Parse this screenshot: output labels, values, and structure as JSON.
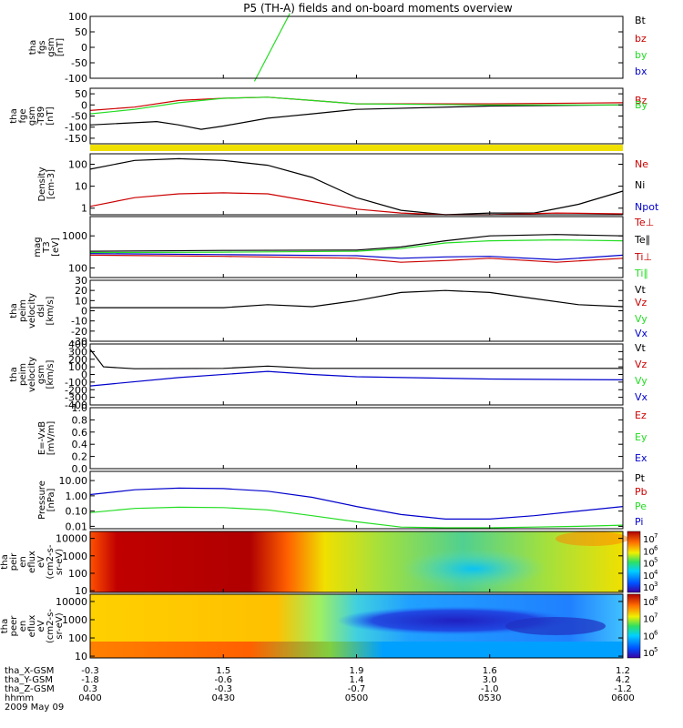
{
  "title": "P5 (TH-A) fields and on-board moments overview",
  "colors": {
    "black": "#000000",
    "red": "#cc0000",
    "green": "#22dd22",
    "blue": "#0000cc",
    "yellow": "#f0e000"
  },
  "time_axis": {
    "ticks": [
      "0400",
      "0430",
      "0500",
      "0530",
      "0600"
    ],
    "rows": [
      {
        "label": "tha_X-GSM",
        "values": [
          "-0.3",
          "1.5",
          "1.9",
          "1.6",
          "1.2"
        ]
      },
      {
        "label": "tha_Y-GSM",
        "values": [
          "-1.8",
          "-0.6",
          "1.4",
          "3.0",
          "4.2"
        ]
      },
      {
        "label": "tha_Z-GSM",
        "values": [
          "0.3",
          "-0.3",
          "-0.7",
          "-1.0",
          "-1.2"
        ]
      },
      {
        "label": "hhmm",
        "values": [
          "0400",
          "0430",
          "0500",
          "0530",
          "0600"
        ]
      }
    ],
    "date": "2009 May 09"
  },
  "panels": [
    {
      "key": "fgs",
      "ylabel": [
        "tha",
        "fgs",
        "gsm",
        "[nT]"
      ],
      "ylim": [
        -100,
        100
      ],
      "yticks": [
        "100",
        "50",
        "0",
        "-50",
        "-100"
      ],
      "ytick_values": [
        100,
        50,
        0,
        -50,
        -100
      ],
      "legend": [
        {
          "text": "Bt",
          "color": "#000000"
        },
        {
          "text": "bz",
          "color": "#cc0000"
        },
        {
          "text": "by",
          "color": "#22dd22"
        },
        {
          "text": "bx",
          "color": "#0000cc"
        }
      ]
    },
    {
      "key": "fge",
      "ylabel": [
        "tha",
        "fge",
        "gsm",
        "-T89",
        "[nT]"
      ],
      "ylim": [
        -175,
        75
      ],
      "yticks": [
        "50",
        "0",
        "-50",
        "-100",
        "-150"
      ],
      "ytick_values": [
        50,
        0,
        -50,
        -100,
        -150
      ],
      "legend": [
        {
          "text": "Bz",
          "color": "#cc0000"
        },
        {
          "text": "By",
          "color": "#22dd22"
        }
      ]
    },
    {
      "key": "density",
      "ylabel": [
        "Density",
        "[cm-3]"
      ],
      "log": true,
      "ylim": [
        0.5,
        300
      ],
      "yticks": [
        "100",
        "10",
        "1"
      ],
      "ytick_values": [
        100,
        10,
        1
      ],
      "legend": [
        {
          "text": "Ne",
          "color": "#cc0000"
        },
        {
          "text": "Ni",
          "color": "#000000"
        },
        {
          "text": "Npot",
          "color": "#0000cc"
        }
      ]
    },
    {
      "key": "temp",
      "ylabel": [
        "mag",
        "T3",
        "[eV]"
      ],
      "log": true,
      "ylim": [
        50,
        4000
      ],
      "yticks": [
        "1000",
        "100"
      ],
      "ytick_values": [
        1000,
        100
      ],
      "legend": [
        {
          "text": "Te⊥",
          "color": "#cc0000"
        },
        {
          "text": "Te∥",
          "color": "#000000"
        },
        {
          "text": "Ti⊥",
          "color": "#cc0000"
        },
        {
          "text": "Ti∥",
          "color": "#22dd22"
        }
      ]
    },
    {
      "key": "vdsl",
      "ylabel": [
        "tha",
        "peim",
        "velocity",
        "dsl",
        "[km/s]"
      ],
      "ylim": [
        -30,
        30
      ],
      "yticks": [
        "30",
        "20",
        "10",
        "0",
        "-10",
        "-20",
        "-30"
      ],
      "ytick_values": [
        30,
        20,
        10,
        0,
        -10,
        -20,
        -30
      ],
      "legend": [
        {
          "text": "Vt",
          "color": "#000000"
        },
        {
          "text": "Vz",
          "color": "#cc0000"
        },
        {
          "text": "Vy",
          "color": "#22dd22"
        },
        {
          "text": "Vx",
          "color": "#0000cc"
        }
      ]
    },
    {
      "key": "vgsm",
      "ylabel": [
        "tha",
        "peim",
        "velocity",
        "gsm",
        "[km/s]"
      ],
      "ylim": [
        -400,
        400
      ],
      "yticks": [
        "400",
        "300",
        "200",
        "100",
        "0",
        "-100",
        "-200",
        "-300",
        "-400"
      ],
      "ytick_values": [
        400,
        300,
        200,
        100,
        0,
        -100,
        -200,
        -300,
        -400
      ],
      "legend": [
        {
          "text": "Vt",
          "color": "#000000"
        },
        {
          "text": "Vz",
          "color": "#cc0000"
        },
        {
          "text": "Vy",
          "color": "#22dd22"
        },
        {
          "text": "Vx",
          "color": "#0000cc"
        }
      ]
    },
    {
      "key": "efield",
      "ylabel": [
        "E=-VxB",
        "[mV/m]"
      ],
      "ylim": [
        0,
        1
      ],
      "yticks": [
        "1.0",
        "0.8",
        "0.6",
        "0.4",
        "0.2",
        "0.0"
      ],
      "ytick_values": [
        1.0,
        0.8,
        0.6,
        0.4,
        0.2,
        0.0
      ],
      "legend": [
        {
          "text": "Ez",
          "color": "#cc0000"
        },
        {
          "text": "Ey",
          "color": "#22dd22"
        },
        {
          "text": "Ex",
          "color": "#0000cc"
        }
      ]
    },
    {
      "key": "pressure",
      "ylabel": [
        "Pressure",
        "[nPa]"
      ],
      "log": true,
      "ylim": [
        0.007,
        40
      ],
      "yticks": [
        "10.00",
        "1.00",
        "0.10",
        "0.01"
      ],
      "ytick_values": [
        10,
        1,
        0.1,
        0.01
      ],
      "legend": [
        {
          "text": "Pt",
          "color": "#000000"
        },
        {
          "text": "Pb",
          "color": "#cc0000"
        },
        {
          "text": "Pe",
          "color": "#22dd22"
        },
        {
          "text": "Pi",
          "color": "#0000cc"
        }
      ]
    },
    {
      "key": "peir",
      "ylabel": [
        "tha",
        "peir",
        "en",
        "eflux",
        "eV",
        "(cm2-s-",
        "sr-eV)"
      ],
      "log": true,
      "ylim": [
        8,
        25000
      ],
      "yticks": [
        "10000",
        "1000",
        "100",
        "10"
      ],
      "ytick_values": [
        10000,
        1000,
        100,
        10
      ],
      "colorbar": [
        "10",
        "10",
        "10",
        "10",
        "10"
      ],
      "colorbar_exp": [
        "7",
        "6",
        "5",
        "4",
        "3"
      ]
    },
    {
      "key": "peer",
      "ylabel": [
        "tha",
        "peer",
        "en",
        "eflux",
        "eV",
        "(cm2-s-",
        "sr-eV)"
      ],
      "log": true,
      "ylim": [
        8,
        25000
      ],
      "yticks": [
        "10000",
        "1000",
        "100",
        "10"
      ],
      "ytick_values": [
        10000,
        1000,
        100,
        10
      ],
      "colorbar": [
        "10",
        "10",
        "10",
        "10"
      ],
      "colorbar_exp": [
        "8",
        "7",
        "6",
        "5"
      ]
    }
  ],
  "chart_data": {
    "type": "line",
    "title": "P5 (TH-A) fields and on-board moments overview",
    "x": {
      "units": "UT",
      "range": [
        "0400",
        "0600"
      ],
      "ticks": [
        "0400",
        "0430",
        "0500",
        "0530",
        "0600"
      ]
    },
    "series": [
      {
        "panel": "fgs",
        "name": "by",
        "t": [
          "0400",
          "0427",
          "0437",
          "0445",
          "0600"
        ],
        "values": [
          null,
          null,
          -110,
          110,
          null
        ]
      },
      {
        "panel": "fge",
        "name": "Bt",
        "t": [
          "0400",
          "0415",
          "0420",
          "0425",
          "0430",
          "0440",
          "0450",
          "0500",
          "0530",
          "0600"
        ],
        "values": [
          -90,
          -75,
          -90,
          -110,
          -95,
          -60,
          -40,
          -20,
          -5,
          0
        ]
      },
      {
        "panel": "fge",
        "name": "Bz",
        "t": [
          "0400",
          "0410",
          "0420",
          "0430",
          "0440",
          "0450",
          "0500",
          "0530",
          "0600"
        ],
        "values": [
          -25,
          -10,
          20,
          30,
          35,
          20,
          5,
          5,
          10
        ]
      },
      {
        "panel": "fge",
        "name": "By",
        "t": [
          "0400",
          "0410",
          "0420",
          "0430",
          "0440",
          "0450",
          "0500",
          "0530",
          "0600"
        ],
        "values": [
          -40,
          -20,
          10,
          30,
          35,
          20,
          5,
          0,
          0
        ]
      },
      {
        "panel": "density",
        "name": "Ni",
        "t": [
          "0400",
          "0410",
          "0420",
          "0430",
          "0440",
          "0450",
          "0500",
          "0510",
          "0520",
          "0530",
          "0540",
          "0550",
          "0600"
        ],
        "values": [
          60,
          150,
          180,
          150,
          90,
          25,
          3,
          0.8,
          0.5,
          0.6,
          0.6,
          1.5,
          6
        ]
      },
      {
        "panel": "density",
        "name": "Ne",
        "t": [
          "0400",
          "0410",
          "0420",
          "0430",
          "0440",
          "0450",
          "0500",
          "0510",
          "0520",
          "0530",
          "0545",
          "0600"
        ],
        "values": [
          1.2,
          3,
          4.5,
          5,
          4.5,
          2,
          0.9,
          0.6,
          0.5,
          0.5,
          0.6,
          0.55
        ]
      },
      {
        "panel": "temp",
        "name": "Te∥",
        "t": [
          "0400",
          "0430",
          "0500",
          "0510",
          "0520",
          "0530",
          "0545",
          "0600"
        ],
        "values": [
          330,
          350,
          360,
          450,
          700,
          1000,
          1100,
          1000
        ]
      },
      {
        "panel": "temp",
        "name": "Ti∥",
        "t": [
          "0400",
          "0430",
          "0500",
          "0510",
          "0520",
          "0530",
          "0545",
          "0600"
        ],
        "values": [
          300,
          310,
          330,
          400,
          600,
          700,
          750,
          700
        ]
      },
      {
        "panel": "temp",
        "name": "Ti⊥",
        "t": [
          "0400",
          "0430",
          "0500",
          "0510",
          "0520",
          "0530",
          "0545",
          "0600"
        ],
        "values": [
          280,
          260,
          240,
          200,
          220,
          230,
          180,
          250
        ]
      },
      {
        "panel": "temp",
        "name": "Te⊥",
        "t": [
          "0400",
          "0430",
          "0500",
          "0510",
          "0520",
          "0530",
          "0545",
          "0600"
        ],
        "values": [
          250,
          230,
          200,
          150,
          170,
          200,
          150,
          200
        ]
      },
      {
        "panel": "vdsl",
        "name": "Vt",
        "t": [
          "0400",
          "0430",
          "0440",
          "0450",
          "0500",
          "0510",
          "0520",
          "0530",
          "0540",
          "0550",
          "0600"
        ],
        "values": [
          3,
          3,
          6,
          4,
          10,
          18,
          20,
          18,
          12,
          6,
          4
        ]
      },
      {
        "panel": "vgsm",
        "name": "Vt",
        "t": [
          "0400",
          "0403",
          "0410",
          "0430",
          "0440",
          "0450",
          "0500",
          "0530",
          "0600"
        ],
        "values": [
          330,
          100,
          75,
          80,
          110,
          80,
          80,
          80,
          80
        ]
      },
      {
        "panel": "vgsm",
        "name": "Vx",
        "t": [
          "0400",
          "0420",
          "0440",
          "0450",
          "0500",
          "0530",
          "0600"
        ],
        "values": [
          -150,
          -40,
          40,
          0,
          -30,
          -60,
          -70
        ]
      },
      {
        "panel": "pressure",
        "name": "Pt",
        "t": [
          "0400",
          "0410",
          "0420",
          "0430",
          "0440",
          "0450",
          "0500",
          "0510",
          "0520",
          "0530",
          "0540",
          "0550",
          "0600"
        ],
        "values": [
          1.2,
          2.5,
          3.2,
          3,
          2,
          0.8,
          0.2,
          0.06,
          0.03,
          0.03,
          0.05,
          0.1,
          0.2
        ]
      },
      {
        "panel": "pressure",
        "name": "Pe",
        "t": [
          "0400",
          "0410",
          "0420",
          "0430",
          "0440",
          "0450",
          "0500",
          "0510",
          "0520",
          "0530",
          "0540",
          "0550",
          "0600"
        ],
        "values": [
          0.08,
          0.15,
          0.18,
          0.17,
          0.12,
          0.05,
          0.02,
          0.009,
          0.008,
          0.008,
          0.009,
          0.01,
          0.012
        ]
      }
    ]
  }
}
